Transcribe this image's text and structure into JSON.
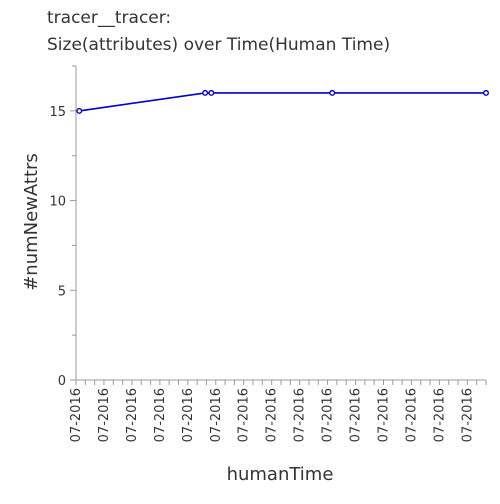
{
  "chart_data": {
    "type": "line",
    "title": "tracer__tracer:",
    "subtitle": "Size(attributes) over Time(Human Time)",
    "xlabel": "humanTime",
    "ylabel": "#numNewAttrs",
    "ylim": [
      0,
      17.5
    ],
    "yticks": [
      0,
      5,
      10,
      15
    ],
    "xlim": [
      0,
      1
    ],
    "xtick_labels": [
      "07-2016",
      "07-2016",
      "07-2016",
      "07-2016",
      "07-2016",
      "07-2016",
      "07-2016",
      "07-2016",
      "07-2016",
      "07-2016",
      "07-2016",
      "07-2016",
      "07-2016",
      "07-2016",
      "07-2016",
      "07-2016",
      "07-2016",
      "07-2016",
      "07-2016",
      "07-2016",
      "07-2016",
      "07-2016",
      "07-2016",
      "07-2016",
      "07-2016",
      "07-2016",
      "07-2016",
      "07-2016",
      "07-2016",
      "07-2016",
      "07-2016",
      "07-2016",
      "07-2016",
      "07-2016",
      "07-2016",
      "07-2016",
      "07-2016",
      "07-2016",
      "07-2016",
      "07-2016",
      "07-2016",
      "07-2016",
      "07-2016",
      "07-2016",
      "07-2016"
    ],
    "series": [
      {
        "x": [
          0.008,
          0.315,
          0.33,
          0.625,
          1.0
        ],
        "values": [
          15,
          16,
          16,
          16,
          16
        ]
      }
    ],
    "grid": false,
    "legend": "none",
    "colors": {
      "line": "#0000cc",
      "axis": "#999999",
      "text": "#333333"
    }
  }
}
